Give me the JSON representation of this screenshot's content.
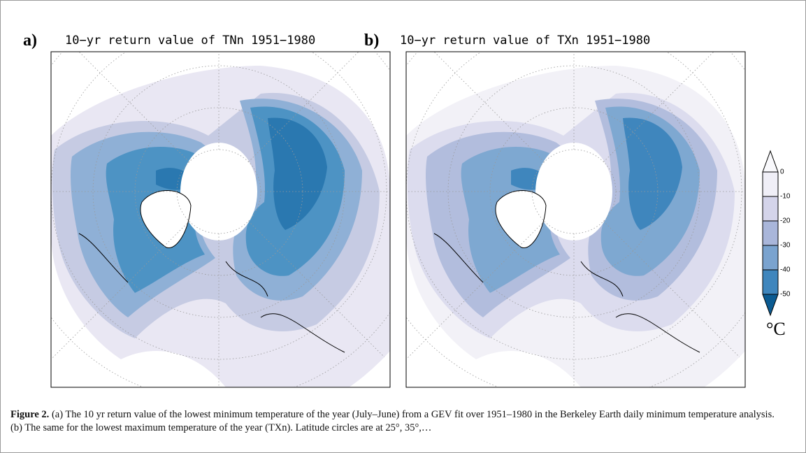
{
  "panels": [
    {
      "label": "a)",
      "title": "10−yr return value of TNn 1951−1980"
    },
    {
      "label": "b)",
      "title": "10−yr return value of TXn 1951−1980"
    }
  ],
  "colorbar": {
    "ticks": [
      "0",
      "-10",
      "-20",
      "-30",
      "-40",
      "-50"
    ],
    "unit": "°C"
  },
  "caption": {
    "label": "Figure 2.",
    "text": " (a) The 10 yr return value of the lowest minimum temperature of the year (July–June) from a GEV fit over 1951–1980 in the Berkeley Earth daily minimum temperature analysis. (b) The same for the lowest maximum temperature of the year (TXn). Latitude circles are at 25°, 35°,…"
  }
}
